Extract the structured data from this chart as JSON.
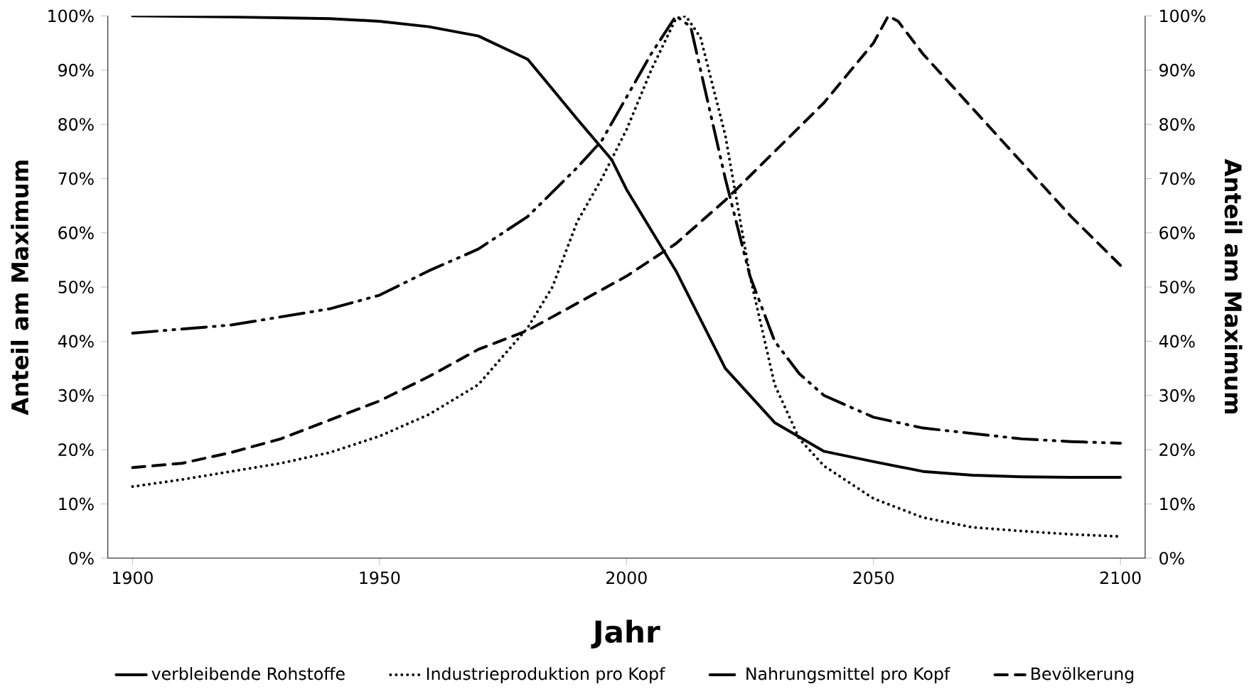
{
  "chart_data": {
    "type": "line",
    "xlabel": "Jahr",
    "ylabel": "Anteil am Maximum",
    "y2label": "Anteil am Maximum",
    "xlim": [
      1895,
      2105
    ],
    "xticks": [
      1900,
      1950,
      2000,
      2050,
      2100
    ],
    "ylim": [
      0,
      100
    ],
    "yticks": [
      {
        "value": 0,
        "label": "0%"
      },
      {
        "value": 10,
        "label": "10%"
      },
      {
        "value": 20,
        "label": "20%"
      },
      {
        "value": 30,
        "label": "30%"
      },
      {
        "value": 40,
        "label": "40%"
      },
      {
        "value": 50,
        "label": "50%"
      },
      {
        "value": 60,
        "label": "60%"
      },
      {
        "value": 70,
        "label": "70%"
      },
      {
        "value": 80,
        "label": "80%"
      },
      {
        "value": 90,
        "label": "90%"
      },
      {
        "value": 100,
        "label": "100%"
      }
    ],
    "y2lim": [
      0,
      100
    ],
    "y2ticks": [
      {
        "value": 0,
        "label": "0%"
      },
      {
        "value": 10,
        "label": "10%"
      },
      {
        "value": 20,
        "label": "20%"
      },
      {
        "value": 30,
        "label": "30%"
      },
      {
        "value": 40,
        "label": "40%"
      },
      {
        "value": 50,
        "label": "50%"
      },
      {
        "value": 60,
        "label": "60%"
      },
      {
        "value": 70,
        "label": "70%"
      },
      {
        "value": 80,
        "label": "80%"
      },
      {
        "value": 90,
        "label": "90%"
      },
      {
        "value": 100,
        "label": "100%"
      }
    ],
    "grid": false,
    "legend": "bottom",
    "marker": "none",
    "series": [
      {
        "name": "verbleibende Rohstoffe",
        "color": "#000000",
        "line_style": "solid",
        "x": [
          1900,
          1920,
          1940,
          1950,
          1960,
          1970,
          1980,
          1990,
          1997,
          2000,
          2010,
          2020,
          2030,
          2040,
          2050,
          2060,
          2070,
          2080,
          2090,
          2100
        ],
        "values": [
          100,
          99.8,
          99.5,
          99,
          98,
          96.3,
          92,
          81,
          73.5,
          68,
          53,
          35,
          25,
          19.7,
          17.8,
          16,
          15.3,
          15,
          14.9,
          14.9
        ]
      },
      {
        "name": "Industrieproduktion pro Kopf",
        "color": "#000000",
        "line_style": "dotted",
        "x": [
          1900,
          1910,
          1920,
          1930,
          1940,
          1950,
          1960,
          1970,
          1980,
          1985,
          1990,
          1995,
          2000,
          2005,
          2010,
          2012,
          2015,
          2020,
          2025,
          2030,
          2035,
          2040,
          2050,
          2060,
          2070,
          2080,
          2090,
          2100
        ],
        "values": [
          13.2,
          14.5,
          16,
          17.5,
          19.5,
          22.5,
          26.5,
          32,
          42.5,
          50,
          62,
          70,
          79,
          90,
          99.5,
          100,
          96,
          78,
          52,
          32,
          22,
          17,
          11,
          7.5,
          5.7,
          5,
          4.4,
          4
        ]
      },
      {
        "name": "Nahrungsmittel pro Kopf",
        "color": "#000000",
        "line_style": "dashdotted",
        "x": [
          1900,
          1920,
          1940,
          1950,
          1960,
          1970,
          1980,
          1990,
          1995,
          2000,
          2005,
          2010,
          2013,
          2015,
          2020,
          2025,
          2030,
          2035,
          2040,
          2050,
          2060,
          2070,
          2080,
          2090,
          2100
        ],
        "values": [
          41.5,
          43,
          46,
          48.5,
          53,
          57,
          63,
          72,
          77,
          85,
          93,
          100,
          98,
          90,
          70,
          52,
          40,
          34,
          30,
          26,
          24,
          23,
          22,
          21.5,
          21.2
        ]
      },
      {
        "name": "Bevölkerung",
        "color": "#000000",
        "line_style": "dashed",
        "x": [
          1900,
          1910,
          1920,
          1930,
          1940,
          1950,
          1960,
          1970,
          1980,
          1990,
          2000,
          2010,
          2020,
          2030,
          2040,
          2050,
          2053,
          2055,
          2060,
          2070,
          2080,
          2090,
          2100
        ],
        "values": [
          16.7,
          17.5,
          19.5,
          22,
          25.5,
          29,
          33.5,
          38.5,
          42,
          47,
          52,
          58,
          66,
          75,
          84,
          95,
          100,
          99,
          93,
          83,
          73,
          63,
          54
        ]
      }
    ]
  }
}
